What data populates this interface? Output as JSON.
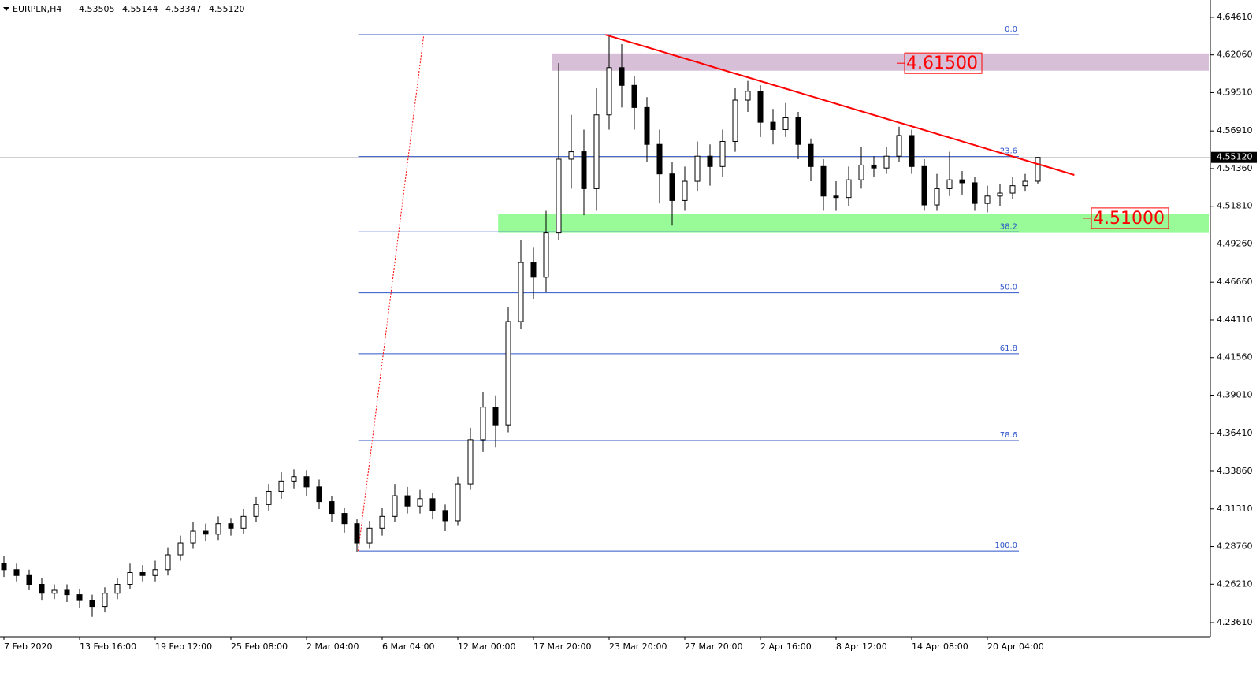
{
  "chart_data": {
    "type": "candlestick",
    "title": "EURPLN,H4",
    "header_values": [
      4.53505,
      4.55144,
      4.53347,
      {
        "value": 4.5512,
        "label": "4.55120"
      }
    ],
    "categories": [
      "7 Feb 2020",
      null,
      null,
      null,
      null,
      null,
      "13 Feb 16:00",
      null,
      null,
      null,
      null,
      null,
      "19 Feb 12:00",
      null,
      null,
      null,
      null,
      null,
      "25 Feb 08:00",
      null,
      null,
      null,
      null,
      null,
      "2 Mar 04:00",
      null,
      null,
      null,
      null,
      null,
      "6 Mar 04:00",
      null,
      null,
      null,
      null,
      null,
      "12 Mar 00:00",
      null,
      null,
      null,
      null,
      null,
      "17 Mar 20:00",
      null,
      null,
      null,
      null,
      null,
      "23 Mar 20:00",
      null,
      null,
      null,
      null,
      null,
      "27 Mar 20:00",
      null,
      null,
      null,
      null,
      null,
      "2 Apr 16:00",
      null,
      null,
      null,
      null,
      null,
      "8 Apr 12:00",
      null,
      null,
      null,
      null,
      null,
      "14 Apr 08:00",
      null,
      null,
      null,
      null,
      null,
      "20 Apr 04:00",
      null,
      null,
      null,
      null
    ],
    "open": [
      4.276,
      4.272,
      4.268,
      4.262,
      4.256,
      4.258,
      4.255,
      4.251,
      4.247,
      4.256,
      4.262,
      4.27,
      4.268,
      4.272,
      4.282,
      4.29,
      4.298,
      4.296,
      4.303,
      4.3,
      4.308,
      4.316,
      4.325,
      4.332,
      4.335,
      4.328,
      4.318,
      4.31,
      4.303,
      4.29,
      4.3,
      4.308,
      4.322,
      4.315,
      4.32,
      4.312,
      4.305,
      4.33,
      4.36,
      4.382,
      4.37,
      4.44,
      4.48,
      4.47,
      4.5,
      4.55,
      4.555,
      4.53,
      4.58,
      4.612,
      4.6,
      4.585,
      4.56,
      4.54,
      4.522,
      4.535,
      4.552,
      4.545,
      4.562,
      4.59,
      4.596,
      4.575,
      4.57,
      4.578,
      4.56,
      4.545,
      4.525,
      4.524,
      4.536,
      4.546,
      4.544,
      4.552,
      4.566,
      4.545,
      4.519,
      4.53,
      4.536,
      4.534,
      4.52,
      4.525,
      4.527,
      4.532,
      4.53505
    ],
    "high": [
      4.281,
      4.276,
      4.272,
      4.266,
      4.262,
      4.262,
      4.259,
      4.255,
      4.26,
      4.266,
      4.276,
      4.275,
      4.278,
      4.287,
      4.295,
      4.304,
      4.303,
      4.308,
      4.307,
      4.313,
      4.321,
      4.33,
      4.338,
      4.34,
      4.339,
      4.333,
      4.322,
      4.314,
      4.306,
      4.305,
      4.314,
      4.33,
      4.328,
      4.326,
      4.324,
      4.316,
      4.335,
      4.368,
      4.392,
      4.39,
      4.45,
      4.495,
      4.49,
      4.515,
      4.615,
      4.58,
      4.57,
      4.598,
      4.634,
      4.628,
      4.606,
      4.592,
      4.57,
      4.548,
      4.545,
      4.562,
      4.56,
      4.57,
      4.598,
      4.603,
      4.6,
      4.584,
      4.588,
      4.582,
      4.564,
      4.55,
      4.535,
      4.545,
      4.558,
      4.552,
      4.558,
      4.572,
      4.57,
      4.55,
      4.54,
      4.555,
      4.542,
      4.538,
      4.532,
      4.533,
      4.538,
      4.54,
      4.55144
    ],
    "low": [
      4.267,
      4.264,
      4.258,
      4.251,
      4.252,
      4.25,
      4.246,
      4.24,
      4.243,
      4.252,
      4.259,
      4.264,
      4.264,
      4.268,
      4.278,
      4.286,
      4.291,
      4.292,
      4.295,
      4.296,
      4.304,
      4.312,
      4.32,
      4.327,
      4.322,
      4.313,
      4.304,
      4.297,
      4.284,
      4.286,
      4.295,
      4.304,
      4.31,
      4.31,
      4.306,
      4.298,
      4.302,
      4.326,
      4.352,
      4.355,
      4.365,
      4.435,
      4.455,
      4.46,
      4.495,
      4.53,
      4.512,
      4.515,
      4.57,
      4.585,
      4.57,
      4.548,
      4.52,
      4.505,
      4.515,
      4.528,
      4.532,
      4.538,
      4.555,
      4.582,
      4.565,
      4.56,
      4.565,
      4.55,
      4.535,
      4.515,
      4.515,
      4.518,
      4.53,
      4.538,
      4.54,
      4.548,
      4.54,
      4.515,
      4.515,
      4.525,
      4.526,
      4.515,
      4.514,
      4.518,
      4.523,
      4.528,
      4.53347
    ],
    "close": [
      4.272,
      4.268,
      4.262,
      4.256,
      4.258,
      4.255,
      4.251,
      4.247,
      4.256,
      4.262,
      4.27,
      4.268,
      4.272,
      4.282,
      4.29,
      4.298,
      4.296,
      4.303,
      4.3,
      4.308,
      4.316,
      4.325,
      4.332,
      4.335,
      4.328,
      4.318,
      4.31,
      4.303,
      4.29,
      4.3,
      4.308,
      4.322,
      4.315,
      4.32,
      4.312,
      4.305,
      4.33,
      4.36,
      4.382,
      4.37,
      4.44,
      4.48,
      4.47,
      4.5,
      4.55,
      4.555,
      4.53,
      4.58,
      4.612,
      4.6,
      4.585,
      4.56,
      4.54,
      4.522,
      4.535,
      4.552,
      4.545,
      4.562,
      4.59,
      4.596,
      4.575,
      4.57,
      4.578,
      4.56,
      4.545,
      4.525,
      4.524,
      4.536,
      4.546,
      4.544,
      4.552,
      4.566,
      4.545,
      4.519,
      4.53,
      4.536,
      4.534,
      4.52,
      4.525,
      4.527,
      4.532,
      4.535,
      4.5512
    ],
    "up_color": "#ffffff",
    "down_color": "#000000",
    "ylim": [
      4.2265,
      4.6578
    ],
    "yticks": [
      {
        "value": 4.6461,
        "label": "4.64610"
      },
      {
        "value": 4.6206,
        "label": "4.62060"
      },
      {
        "value": 4.5951,
        "label": "4.59510"
      },
      {
        "value": 4.5691,
        "label": "4.56910"
      },
      {
        "value": 4.5436,
        "label": "4.54360"
      },
      {
        "value": 4.5181,
        "label": "4.51810"
      },
      {
        "value": 4.4926,
        "label": "4.49260"
      },
      {
        "value": 4.4666,
        "label": "4.46660"
      },
      {
        "value": 4.4411,
        "label": "4.44110"
      },
      {
        "value": 4.4156,
        "label": "4.41560"
      },
      {
        "value": 4.3901,
        "label": "4.39010"
      },
      {
        "value": 4.3641,
        "label": "4.36410"
      },
      {
        "value": 4.3386,
        "label": "4.33860"
      },
      {
        "value": 4.3131,
        "label": "4.31310"
      },
      {
        "value": 4.2876,
        "label": "4.28760"
      },
      {
        "value": 4.2621,
        "label": "4.26210"
      },
      {
        "value": 4.2361,
        "label": "4.23610"
      }
    ],
    "current_price": {
      "value": 4.5512,
      "label": "4.55120"
    },
    "fibonacci": {
      "high": 4.6343,
      "low": 4.2846,
      "start": 28.1,
      "end": 80.5,
      "color": "#2f55c9",
      "levels": [
        {
          "value": 0,
          "label": "0.0"
        },
        23.6,
        38.2,
        {
          "value": 50,
          "label": "50.0"
        },
        61.8,
        78.6,
        {
          "value": 100,
          "label": "100.0"
        }
      ]
    },
    "zones": [
      {
        "top": 4.6216,
        "bottom": 4.6099,
        "start": 43.5,
        "color": "#d8bfd8",
        "level": {
          "value": 4.615,
          "label": "4.61500"
        }
      },
      {
        "top": 4.5127,
        "bottom": 4.5,
        "start": 39.2,
        "color": "#98fb98",
        "level": {
          "value": 4.51,
          "label": "4.51000"
        }
      }
    ],
    "trendline": {
      "x": [
        47.7,
        84.9
      ],
      "y": [
        4.6343,
        4.5393
      ],
      "color": "#ff0000"
    },
    "fib_trendline": {
      "x": [
        28.1,
        33.3
      ],
      "y": [
        4.2846,
        4.6343
      ],
      "color": "#ff0000"
    }
  }
}
